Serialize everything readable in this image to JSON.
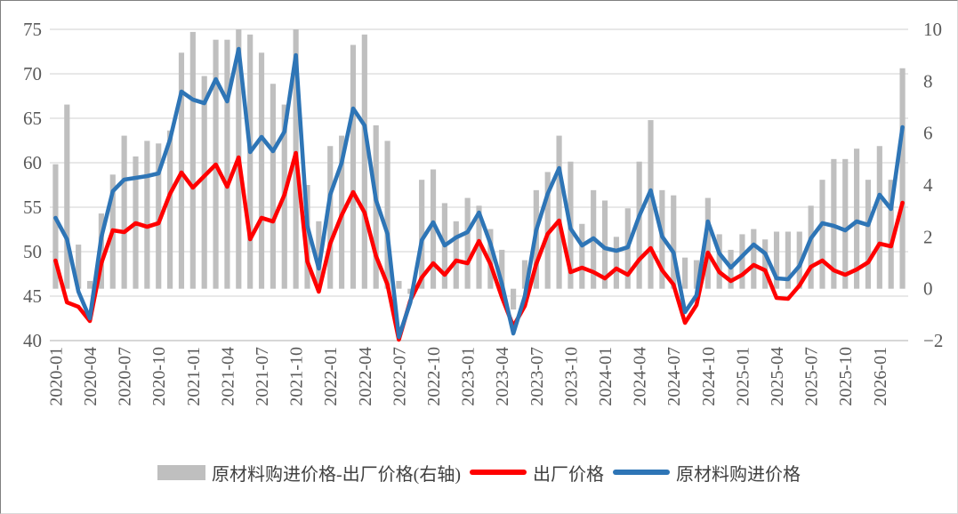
{
  "colors": {
    "bar": "#BFBFBF",
    "factory_line": "#FF0000",
    "purchase_line": "#2E75B6",
    "gridline": "#D9D9D9",
    "axis_line": "#BFBFBF",
    "tick_text": "#595959",
    "legend_text": "#404040",
    "background": "#FFFFFF"
  },
  "legend": {
    "position": "bottom",
    "items": [
      {
        "swatch": "gray-bar",
        "label": "原材料购进价格-出厂价格(右轴)"
      },
      {
        "swatch": "red-line",
        "label": "出厂价格"
      },
      {
        "swatch": "blue-line",
        "label": "原材料购进价格"
      }
    ]
  },
  "chart_data": {
    "type": "combo",
    "title": "",
    "xlabel": "",
    "ylabel": "",
    "grid": true,
    "legend_position": "bottom",
    "categories": [
      "2020-01",
      "2020-02",
      "2020-03",
      "2020-04",
      "2020-05",
      "2020-06",
      "2020-07",
      "2020-08",
      "2020-09",
      "2020-10",
      "2020-11",
      "2020-12",
      "2021-01",
      "2021-02",
      "2021-03",
      "2021-04",
      "2021-05",
      "2021-06",
      "2021-07",
      "2021-08",
      "2021-09",
      "2021-10",
      "2021-11",
      "2021-12",
      "2022-01",
      "2022-02",
      "2022-03",
      "2022-04",
      "2022-05",
      "2022-06",
      "2022-07",
      "2022-08",
      "2022-09",
      "2022-10",
      "2022-11",
      "2022-12",
      "2023-01",
      "2023-02",
      "2023-03",
      "2023-04",
      "2023-05",
      "2023-06",
      "2023-07",
      "2023-08",
      "2023-09",
      "2023-10",
      "2023-11",
      "2023-12",
      "2024-01",
      "2024-02",
      "2024-03",
      "2024-04",
      "2024-05",
      "2024-06",
      "2024-07",
      "2024-08",
      "2024-09",
      "2024-10",
      "2024-11",
      "2024-12",
      "2025-01",
      "2025-02",
      "2025-03",
      "2025-04",
      "2025-05",
      "2025-06",
      "2025-07",
      "2025-08",
      "2025-09",
      "2025-10",
      "2025-11",
      "2025-12",
      "2026-01",
      "2026-02",
      "2026-03"
    ],
    "x_tick_step": 3,
    "x_tick_labels": [
      "2020-01",
      "2020-04",
      "2020-07",
      "2020-10",
      "2021-01",
      "2021-04",
      "2021-07",
      "2021-10",
      "2022-01",
      "2022-04",
      "2022-07",
      "2022-10",
      "2023-01",
      "2023-04",
      "2023-07",
      "2023-10",
      "2024-01",
      "2024-04",
      "2024-07",
      "2024-10",
      "2025-01",
      "2025-04",
      "2025-07",
      "2025-10",
      "2026-01"
    ],
    "series": [
      {
        "name": "原材料购进价格-出厂价格(右轴)",
        "type": "bar",
        "axis": "right",
        "color": "#BFBFBF",
        "values": [
          4.8,
          7.1,
          1.7,
          0.3,
          2.9,
          4.4,
          5.9,
          5.1,
          5.7,
          5.6,
          6.1,
          9.1,
          9.9,
          8.2,
          9.6,
          9.6,
          12.2,
          9.8,
          9.1,
          7.9,
          7.1,
          11.0,
          4.0,
          2.6,
          5.5,
          5.9,
          9.4,
          9.8,
          6.3,
          5.7,
          0.3,
          -0.2,
          4.2,
          4.6,
          3.3,
          2.6,
          3.5,
          3.2,
          2.3,
          1.5,
          -0.8,
          1.1,
          3.8,
          4.5,
          5.9,
          4.9,
          2.5,
          3.8,
          3.4,
          2.0,
          3.1,
          4.9,
          6.5,
          3.8,
          3.6,
          1.2,
          1.1,
          3.5,
          2.1,
          1.5,
          2.1,
          2.3,
          1.9,
          2.2,
          2.2,
          2.2,
          3.2,
          4.2,
          5.0,
          5.0,
          5.4,
          4.2,
          5.5,
          4.2,
          8.5
        ],
        "note": "bars taller than right-axis max 10 are clipped at 10 (2021-05=12.2, 2021-10=11.0)"
      },
      {
        "name": "出厂价格",
        "type": "line",
        "axis": "left",
        "color": "#FF0000",
        "values": [
          49.0,
          44.3,
          43.8,
          42.2,
          48.7,
          52.4,
          52.2,
          53.2,
          52.8,
          53.2,
          56.5,
          58.9,
          57.2,
          58.5,
          59.8,
          57.3,
          60.6,
          51.4,
          53.8,
          53.4,
          56.4,
          61.1,
          48.9,
          45.5,
          50.9,
          54.1,
          56.7,
          54.4,
          49.5,
          46.3,
          40.1,
          44.5,
          47.1,
          48.7,
          47.4,
          49.0,
          48.7,
          51.2,
          48.6,
          44.9,
          41.6,
          43.9,
          48.6,
          52.0,
          53.5,
          47.7,
          48.2,
          47.7,
          47.0,
          48.1,
          47.4,
          49.1,
          50.4,
          47.9,
          46.3,
          42.0,
          44.0,
          49.9,
          47.7,
          46.7,
          47.4,
          48.5,
          47.9,
          44.8,
          44.7,
          46.2,
          48.3,
          49.0,
          47.9,
          47.4,
          48.0,
          48.8,
          50.9,
          50.6,
          55.5
        ]
      },
      {
        "name": "原材料购进价格",
        "type": "line",
        "axis": "left",
        "color": "#2E75B6",
        "values": [
          53.8,
          51.4,
          45.5,
          42.5,
          51.6,
          56.8,
          58.1,
          58.3,
          58.5,
          58.8,
          62.6,
          68.0,
          67.1,
          66.7,
          69.4,
          66.9,
          72.8,
          61.2,
          62.9,
          61.3,
          63.5,
          72.1,
          52.9,
          48.1,
          56.4,
          60.0,
          66.1,
          64.2,
          55.8,
          52.0,
          40.4,
          44.3,
          51.3,
          53.3,
          50.7,
          51.6,
          52.2,
          54.4,
          50.9,
          46.4,
          40.8,
          45.0,
          52.4,
          56.5,
          59.4,
          52.6,
          50.7,
          51.5,
          50.4,
          50.1,
          50.5,
          54.0,
          56.9,
          51.7,
          49.9,
          43.2,
          45.1,
          53.4,
          49.8,
          48.2,
          49.5,
          50.8,
          49.8,
          47.0,
          46.9,
          48.4,
          51.5,
          53.2,
          52.9,
          52.4,
          53.4,
          53.0,
          56.4,
          54.8,
          64.0
        ]
      }
    ],
    "left_axis": {
      "min": 40,
      "max": 75,
      "ticks": [
        75,
        70,
        65,
        60,
        55,
        50,
        45,
        40
      ],
      "tick_labels": [
        "75",
        "70",
        "65",
        "60",
        "55",
        "50",
        "45",
        "40"
      ]
    },
    "right_axis": {
      "min": -2,
      "max": 10,
      "ticks": [
        10,
        8,
        6,
        4,
        2,
        0,
        -2
      ],
      "tick_labels": [
        "10",
        "8",
        "6",
        "4",
        "2",
        "0",
        "−2"
      ]
    }
  }
}
